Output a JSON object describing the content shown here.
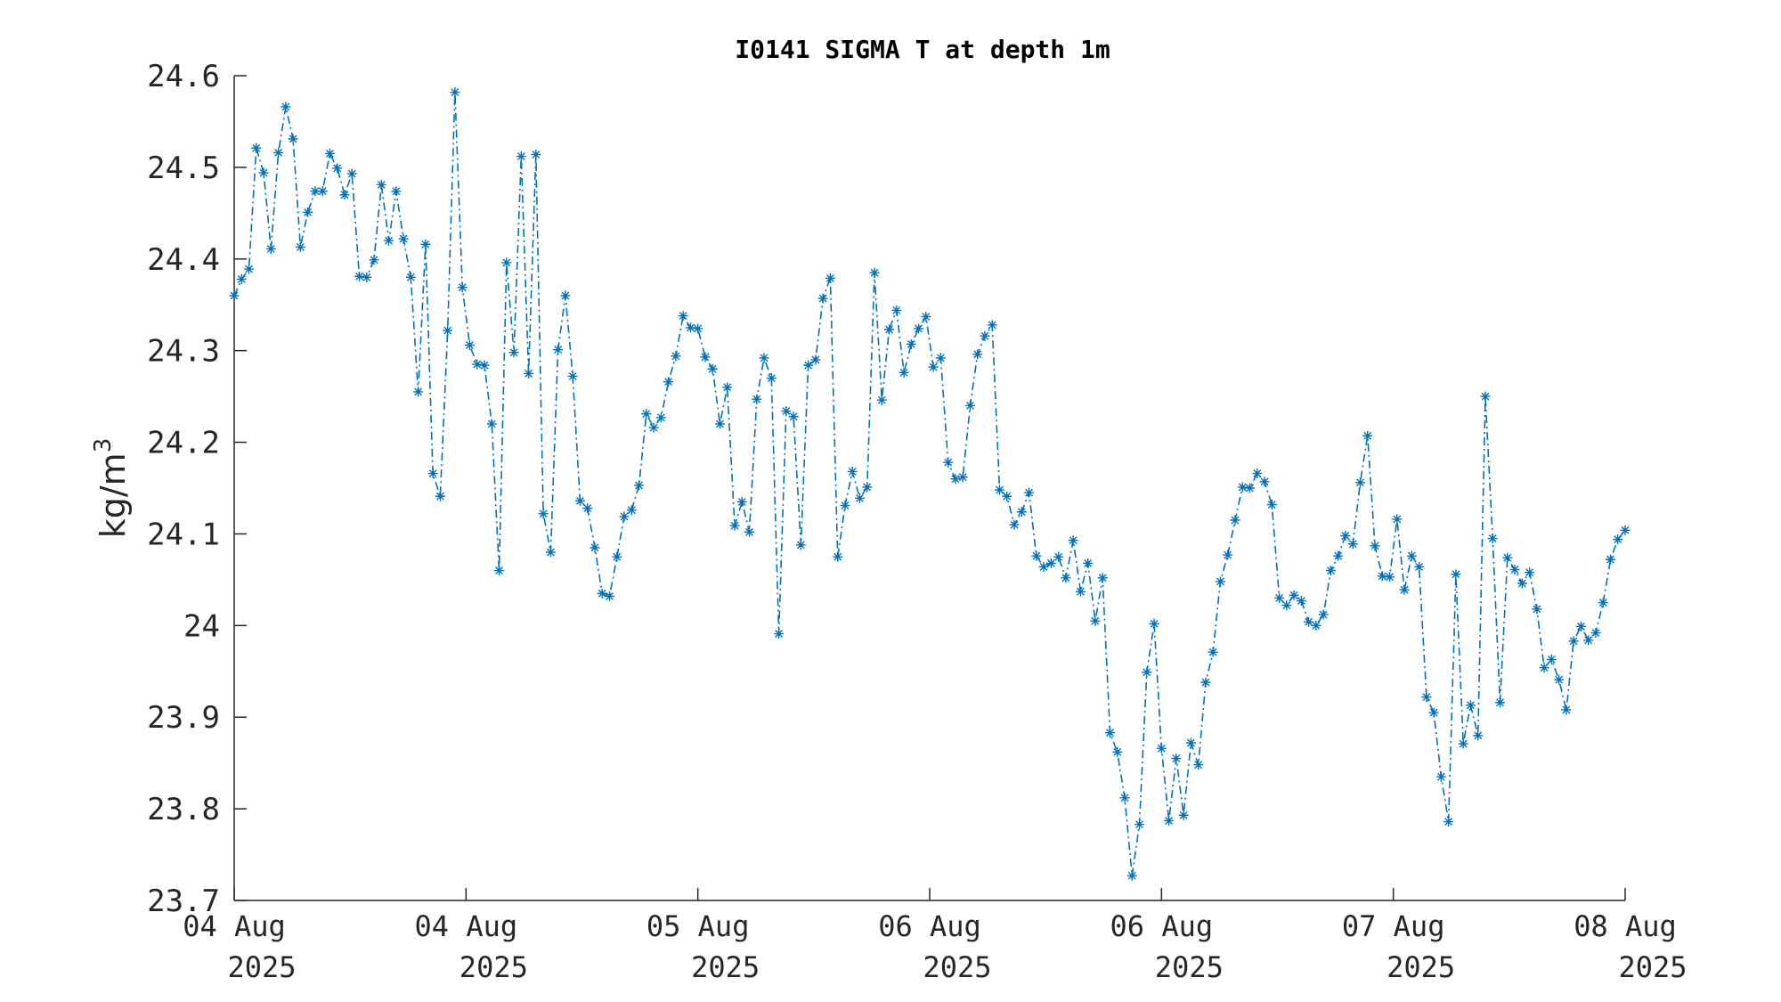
{
  "chart_data": {
    "type": "line",
    "title": "I0141 SIGMA T at depth 1m",
    "ylabel": "kg/m",
    "ylabel_superscript": "3",
    "xlabel": "",
    "ylim": [
      23.7,
      24.6
    ],
    "xlim": [
      0,
      6
    ],
    "y_ticks": [
      {
        "value": 23.7,
        "label": "23.7"
      },
      {
        "value": 23.8,
        "label": "23.8"
      },
      {
        "value": 23.9,
        "label": "23.9"
      },
      {
        "value": 24.0,
        "label": "24"
      },
      {
        "value": 24.1,
        "label": "24.1"
      },
      {
        "value": 24.2,
        "label": "24.2"
      },
      {
        "value": 24.3,
        "label": "24.3"
      },
      {
        "value": 24.4,
        "label": "24.4"
      },
      {
        "value": 24.5,
        "label": "24.5"
      },
      {
        "value": 24.6,
        "label": "24.6"
      }
    ],
    "x_ticks": [
      {
        "value": 0,
        "line1": "04 Aug",
        "line2": "2025"
      },
      {
        "value": 1,
        "line1": "04 Aug",
        "line2": "2025"
      },
      {
        "value": 2,
        "line1": "05 Aug",
        "line2": "2025"
      },
      {
        "value": 3,
        "line1": "06 Aug",
        "line2": "2025"
      },
      {
        "value": 4,
        "line1": "06 Aug",
        "line2": "2025"
      },
      {
        "value": 5,
        "line1": "07 Aug",
        "line2": "2025"
      },
      {
        "value": 6,
        "line1": "08 Aug",
        "line2": "2025"
      }
    ],
    "grid": false,
    "color": "#0072BD",
    "marker": "asterisk",
    "line_style": "dash-dot",
    "series": [
      {
        "values": [
          24.36,
          24.378,
          24.389,
          24.521,
          24.494,
          24.411,
          24.516,
          24.566,
          24.531,
          24.413,
          24.451,
          24.474,
          24.474,
          24.515,
          24.499,
          24.47,
          24.493,
          24.381,
          24.38,
          24.399,
          24.481,
          24.42,
          24.474,
          24.422,
          24.38,
          24.255,
          24.416,
          24.166,
          24.141,
          24.322,
          24.582,
          24.369,
          24.306,
          24.285,
          24.284,
          24.22,
          24.06,
          24.396,
          24.298,
          24.512,
          24.275,
          24.514,
          24.122,
          24.08,
          24.301,
          24.36,
          24.272,
          24.136,
          24.128,
          24.085,
          24.035,
          24.032,
          24.075,
          24.119,
          24.126,
          24.153,
          24.231,
          24.216,
          24.227,
          24.266,
          24.294,
          24.338,
          24.325,
          24.324,
          24.293,
          24.28,
          24.22,
          24.26,
          24.109,
          24.135,
          24.102,
          24.247,
          24.292,
          24.27,
          23.991,
          24.234,
          24.228,
          24.088,
          24.284,
          24.29,
          24.357,
          24.379,
          24.075,
          24.131,
          24.168,
          24.139,
          24.151,
          24.385,
          24.246,
          24.323,
          24.344,
          24.276,
          24.307,
          24.324,
          24.337,
          24.282,
          24.292,
          24.178,
          24.16,
          24.162,
          24.24,
          24.296,
          24.316,
          24.328,
          24.148,
          24.141,
          24.11,
          24.124,
          24.145,
          24.076,
          24.064,
          24.068,
          24.075,
          24.052,
          24.093,
          24.037,
          24.068,
          24.005,
          24.052,
          23.883,
          23.862,
          23.812,
          23.727,
          23.783,
          23.949,
          24.002,
          23.866,
          23.787,
          23.855,
          23.793,
          23.872,
          23.848,
          23.938,
          23.971,
          24.048,
          24.077,
          24.115,
          24.151,
          24.15,
          24.166,
          24.157,
          24.132,
          24.03,
          24.022,
          24.033,
          24.027,
          24.004,
          24.0,
          24.012,
          24.06,
          24.076,
          24.098,
          24.089,
          24.156,
          24.207,
          24.087,
          24.054,
          24.053,
          24.116,
          24.039,
          24.076,
          24.064,
          23.922,
          23.905,
          23.835,
          23.786,
          24.056,
          23.871,
          23.913,
          23.88,
          24.25,
          24.095,
          23.916,
          24.074,
          24.061,
          24.046,
          24.058,
          24.018,
          23.954,
          23.963,
          23.941,
          23.908,
          23.983,
          23.999,
          23.984,
          23.992,
          24.025,
          24.072,
          24.094,
          24.104
        ]
      }
    ]
  }
}
